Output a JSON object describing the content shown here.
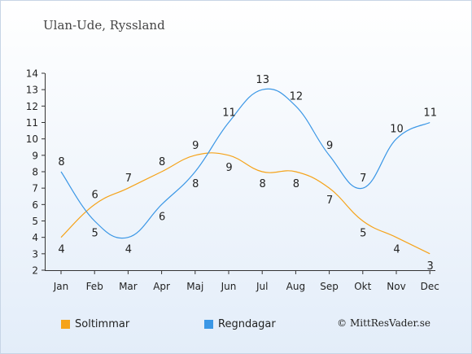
{
  "chart_data": {
    "type": "line",
    "title": "Ulan-Ude, Ryssland",
    "categories": [
      "Jan",
      "Feb",
      "Mar",
      "Apr",
      "Maj",
      "Jun",
      "Jul",
      "Aug",
      "Sep",
      "Okt",
      "Nov",
      "Dec"
    ],
    "ylim": [
      2,
      14
    ],
    "yticks": [
      2,
      3,
      4,
      5,
      6,
      7,
      8,
      9,
      10,
      11,
      12,
      13,
      14
    ],
    "series": [
      {
        "name": "Soltimmar",
        "color": "#f5a31a",
        "values": [
          4,
          6,
          7,
          8,
          9,
          9,
          8,
          8,
          7,
          5,
          4,
          3
        ]
      },
      {
        "name": "Regndagar",
        "color": "#3b97e6",
        "values": [
          8,
          5,
          4,
          6,
          8,
          11,
          13,
          12,
          9,
          7,
          10,
          11
        ]
      }
    ],
    "grid": false,
    "legend_position": "bottom-left"
  },
  "copyright": "© MittResVader.se"
}
